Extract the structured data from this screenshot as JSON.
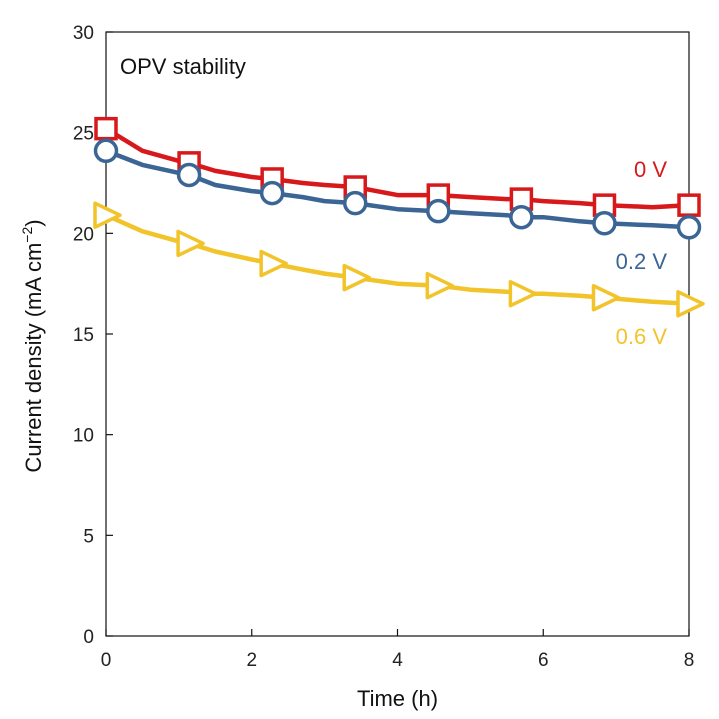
{
  "chart_data": {
    "type": "line",
    "title": "",
    "annotation": "OPV stability",
    "xlabel": "Time (h)",
    "ylabel_main": "Current density (mA cm",
    "ylabel_sup": "−2",
    "ylabel_close": ")",
    "xlim": [
      0,
      8
    ],
    "ylim": [
      0,
      30
    ],
    "xticks": [
      0,
      2,
      4,
      6,
      8
    ],
    "yticks": [
      0,
      5,
      10,
      15,
      20,
      25,
      30
    ],
    "grid": false,
    "series": [
      {
        "name": "0 V",
        "color": "#d7191c",
        "marker": "square",
        "x": [
          0,
          0.5,
          1.0,
          1.14,
          1.5,
          2.0,
          2.28,
          2.7,
          3.0,
          3.42,
          4.0,
          4.56,
          5.0,
          5.5,
          5.7,
          6.0,
          6.5,
          6.84,
          7.5,
          8.0
        ],
        "y": [
          25.2,
          24.1,
          23.6,
          23.5,
          23.1,
          22.8,
          22.7,
          22.5,
          22.4,
          22.3,
          21.9,
          21.9,
          21.8,
          21.7,
          21.7,
          21.6,
          21.5,
          21.4,
          21.3,
          21.4
        ],
        "marker_x": [
          0,
          1.14,
          2.28,
          3.42,
          4.56,
          5.7,
          6.84,
          8.0
        ],
        "marker_y": [
          25.2,
          23.5,
          22.7,
          22.3,
          21.9,
          21.7,
          21.4,
          21.4
        ]
      },
      {
        "name": "0.2 V",
        "color": "#3a6594",
        "marker": "circle",
        "x": [
          0,
          0.5,
          1.0,
          1.14,
          1.5,
          2.0,
          2.28,
          2.7,
          3.0,
          3.42,
          4.0,
          4.56,
          5.0,
          5.5,
          5.7,
          6.0,
          6.5,
          6.84,
          7.5,
          8.0
        ],
        "y": [
          24.1,
          23.4,
          23.0,
          22.9,
          22.4,
          22.1,
          22.0,
          21.8,
          21.6,
          21.5,
          21.2,
          21.1,
          21.0,
          20.9,
          20.8,
          20.8,
          20.6,
          20.5,
          20.4,
          20.3
        ],
        "marker_x": [
          0,
          1.14,
          2.28,
          3.42,
          4.56,
          5.7,
          6.84,
          8.0
        ],
        "marker_y": [
          24.1,
          22.9,
          22.0,
          21.5,
          21.1,
          20.8,
          20.5,
          20.3
        ]
      },
      {
        "name": "0.6 V",
        "color": "#f2c42b",
        "marker": "triangle-right",
        "x": [
          0,
          0.5,
          1.0,
          1.14,
          1.5,
          2.0,
          2.28,
          2.7,
          3.0,
          3.42,
          4.0,
          4.56,
          5.0,
          5.5,
          5.7,
          6.0,
          6.5,
          6.84,
          7.5,
          8.0
        ],
        "y": [
          20.9,
          20.1,
          19.6,
          19.5,
          19.1,
          18.7,
          18.5,
          18.2,
          18.0,
          17.8,
          17.5,
          17.4,
          17.2,
          17.1,
          17.0,
          17.0,
          16.9,
          16.8,
          16.6,
          16.5
        ],
        "marker_x": [
          0,
          1.14,
          2.28,
          3.42,
          4.56,
          5.7,
          6.84,
          8.0
        ],
        "marker_y": [
          20.9,
          19.5,
          18.5,
          17.8,
          17.4,
          17.0,
          16.8,
          16.5
        ]
      }
    ]
  }
}
